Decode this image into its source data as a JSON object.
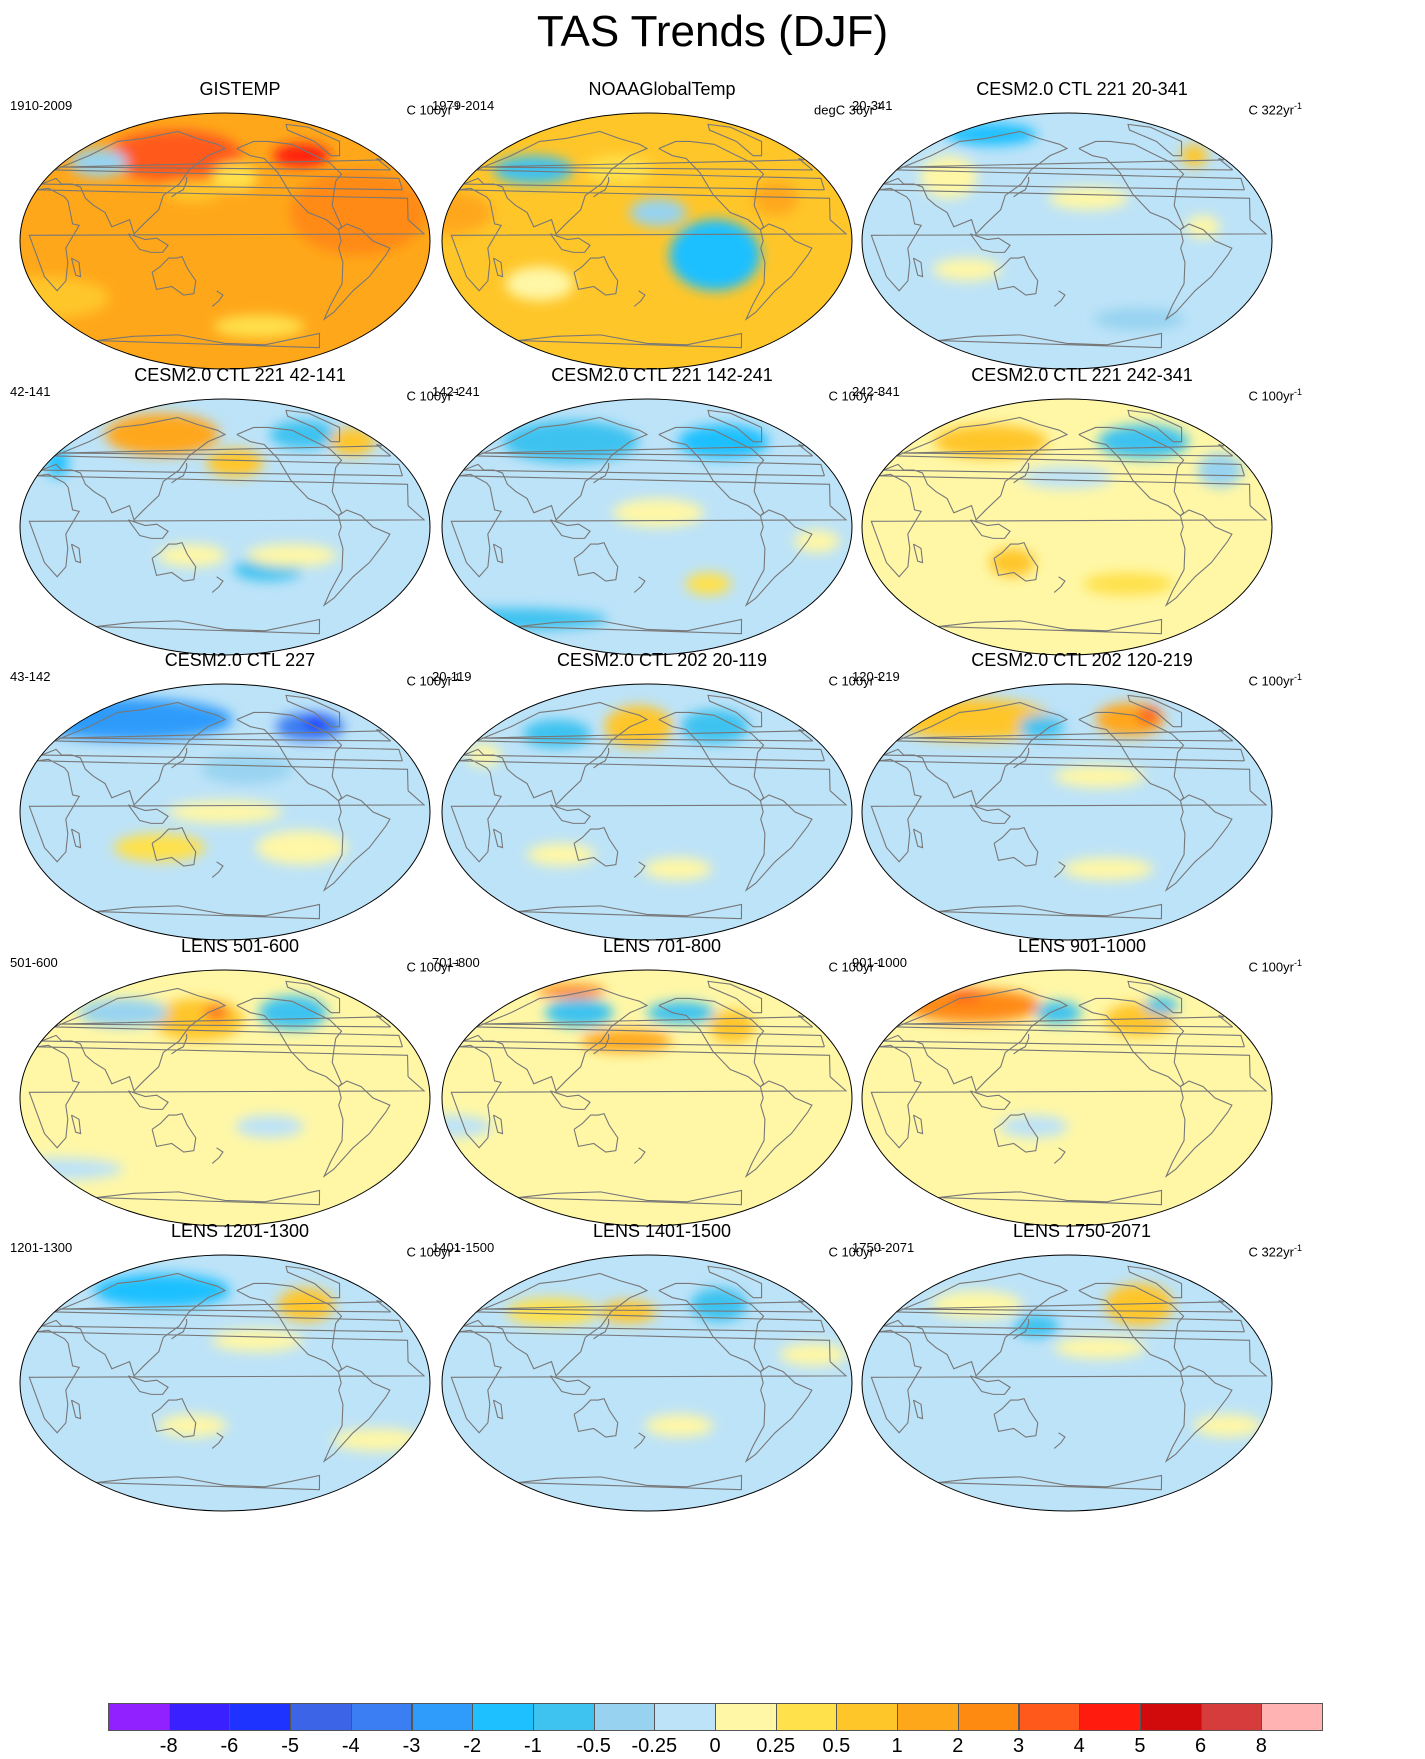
{
  "title": "TAS Trends (DJF)",
  "palette": {
    "-8": "#9121ff",
    "-6": "#3a1fff",
    "-5": "#1e33ff",
    "-4": "#3c64e6",
    "-3": "#3b7df2",
    "-2": "#2f9bfb",
    "-1": "#1ec0ff",
    "-0.5": "#3ec2f0",
    "-0.25": "#97d3f0",
    "0": "#bde3f8",
    "0.25": "#fff7a6",
    "0.5": "#ffe14b",
    "1": "#ffc629",
    "2": "#ffa71a",
    "3": "#ff8a12",
    "4": "#ff5a1c",
    "5": "#ff1b0d",
    "6": "#d10b0b",
    "8": "#d63c3c",
    "over": "#ffb3b3",
    "coast": "#777777",
    "missing": "#ffffff"
  },
  "colorbar": {
    "labels": [
      "-8",
      "-6",
      "-5",
      "-4",
      "-3",
      "-2",
      "-1",
      "-0.5",
      "-0.25",
      "0",
      "0.25",
      "0.5",
      "1",
      "2",
      "3",
      "4",
      "5",
      "6",
      "8"
    ],
    "colors": [
      "#9121ff",
      "#3a1fff",
      "#1e33ff",
      "#3c64e6",
      "#3b7df2",
      "#2f9bfb",
      "#1ec0ff",
      "#3ec2f0",
      "#97d3f0",
      "#bde3f8",
      "#fff7a6",
      "#ffe14b",
      "#ffc629",
      "#ffa71a",
      "#ff8a12",
      "#ff5a1c",
      "#ff1b0d",
      "#d10b0b",
      "#d63c3c",
      "#ffb3b3"
    ]
  },
  "panels": [
    {
      "title": "GISTEMP",
      "left": "1910-2009",
      "right": "C 100yr",
      "sup": "-1",
      "base": "2",
      "blobs": [
        {
          "lon": -60,
          "lat": 20,
          "rx": 60,
          "ry": 30,
          "v": "3"
        },
        {
          "lon": 120,
          "lat": 60,
          "rx": 60,
          "ry": 18,
          "v": "4"
        },
        {
          "lon": -90,
          "lat": 60,
          "rx": 25,
          "ry": 8,
          "v": "5"
        },
        {
          "lon": 40,
          "lat": 55,
          "rx": 25,
          "ry": 10,
          "v": "-0.25"
        },
        {
          "lon": -170,
          "lat": 45,
          "rx": 20,
          "ry": 10,
          "v": "0.5"
        },
        {
          "lon": 150,
          "lat": 35,
          "rx": 25,
          "ry": 8,
          "v": "1"
        },
        {
          "lon": 0,
          "lat": -40,
          "rx": 60,
          "ry": 15,
          "v": "1"
        },
        {
          "lon": -140,
          "lat": -60,
          "rx": 40,
          "ry": 8,
          "v": "0.5"
        }
      ]
    },
    {
      "title": "NOAAGlobalTemp",
      "left": "1979-2014",
      "right": "degC 36yr",
      "sup": "-1",
      "base": "1",
      "blobs": [
        {
          "lon": -120,
          "lat": -10,
          "rx": 40,
          "ry": 25,
          "v": "-1"
        },
        {
          "lon": -170,
          "lat": 20,
          "rx": 25,
          "ry": 10,
          "v": "-0.25"
        },
        {
          "lon": 150,
          "lat": 50,
          "rx": 30,
          "ry": 10,
          "v": "0.5"
        },
        {
          "lon": 60,
          "lat": 50,
          "rx": 35,
          "ry": 10,
          "v": "-0.5"
        },
        {
          "lon": 0,
          "lat": 20,
          "rx": 40,
          "ry": 15,
          "v": "2"
        },
        {
          "lon": -60,
          "lat": 30,
          "rx": 20,
          "ry": 12,
          "v": "2"
        },
        {
          "lon": 80,
          "lat": -30,
          "rx": 30,
          "ry": 12,
          "v": "0.25"
        }
      ]
    },
    {
      "title": "CESM2.0 CTL 221 20-341",
      "left": "20-341",
      "right": "C 322yr",
      "sup": "-1",
      "base": "0",
      "blobs": [
        {
          "lon": 60,
          "lat": 75,
          "rx": 40,
          "ry": 8,
          "v": "-1"
        },
        {
          "lon": 60,
          "lat": 45,
          "rx": 25,
          "ry": 15,
          "v": "0.25"
        },
        {
          "lon": -160,
          "lat": 30,
          "rx": 35,
          "ry": 8,
          "v": "0.25"
        },
        {
          "lon": -30,
          "lat": 60,
          "rx": 12,
          "ry": 8,
          "v": "1"
        },
        {
          "lon": -100,
          "lat": -55,
          "rx": 40,
          "ry": 8,
          "v": "-0.25"
        },
        {
          "lon": 90,
          "lat": -20,
          "rx": 30,
          "ry": 8,
          "v": "0.25"
        },
        {
          "lon": -60,
          "lat": 10,
          "rx": 15,
          "ry": 8,
          "v": "0.25"
        }
      ]
    },
    {
      "title": "CESM2.0 CTL 221 42-141",
      "left": "42-141",
      "right": "C 100yr",
      "sup": "-1",
      "base": "0",
      "blobs": [
        {
          "lon": 100,
          "lat": 65,
          "rx": 50,
          "ry": 15,
          "v": "2"
        },
        {
          "lon": -170,
          "lat": 45,
          "rx": 25,
          "ry": 10,
          "v": "1"
        },
        {
          "lon": -80,
          "lat": 65,
          "rx": 30,
          "ry": 10,
          "v": "-0.5"
        },
        {
          "lon": -30,
          "lat": 60,
          "rx": 20,
          "ry": 10,
          "v": "1"
        },
        {
          "lon": 10,
          "lat": 45,
          "rx": 10,
          "ry": 10,
          "v": "-1"
        },
        {
          "lon": -140,
          "lat": -30,
          "rx": 30,
          "ry": 8,
          "v": "-0.5"
        },
        {
          "lon": 150,
          "lat": -20,
          "rx": 30,
          "ry": 8,
          "v": "0.25"
        },
        {
          "lon": -120,
          "lat": -20,
          "rx": 40,
          "ry": 8,
          "v": "0.25"
        }
      ]
    },
    {
      "title": "CESM2.0 CTL 221 142-241",
      "left": "142-241",
      "right": "C 100yr",
      "sup": "-1",
      "base": "0",
      "blobs": [
        {
          "lon": 90,
          "lat": 60,
          "rx": 60,
          "ry": 15,
          "v": "-0.5"
        },
        {
          "lon": -90,
          "lat": 60,
          "rx": 40,
          "ry": 12,
          "v": "-1"
        },
        {
          "lon": -170,
          "lat": 10,
          "rx": 40,
          "ry": 10,
          "v": "0.25"
        },
        {
          "lon": -120,
          "lat": -40,
          "rx": 20,
          "ry": 8,
          "v": "0.5"
        },
        {
          "lon": -30,
          "lat": -10,
          "rx": 20,
          "ry": 8,
          "v": "0.25"
        },
        {
          "lon": 0,
          "lat": -65,
          "rx": 90,
          "ry": 8,
          "v": "-0.5"
        }
      ]
    },
    {
      "title": "CESM2.0 CTL 221 242-341",
      "left": "242-341",
      "right": "C 100yr",
      "sup": "-1",
      "base": "0.25",
      "blobs": [
        {
          "lon": 90,
          "lat": 60,
          "rx": 50,
          "ry": 12,
          "v": "1"
        },
        {
          "lon": -90,
          "lat": 60,
          "rx": 40,
          "ry": 12,
          "v": "-0.5"
        },
        {
          "lon": -30,
          "lat": 40,
          "rx": 20,
          "ry": 12,
          "v": "-0.25"
        },
        {
          "lon": 180,
          "lat": 35,
          "rx": 40,
          "ry": 8,
          "v": "0"
        },
        {
          "lon": 130,
          "lat": -25,
          "rx": 20,
          "ry": 10,
          "v": "1"
        },
        {
          "lon": -120,
          "lat": -40,
          "rx": 40,
          "ry": 8,
          "v": "0.5"
        }
      ]
    },
    {
      "title": "CESM2.0 CTL 227",
      "left": "43-142",
      "right": "C 100yr",
      "sup": "-1",
      "base": "0",
      "blobs": [
        {
          "lon": 60,
          "lat": 65,
          "rx": 90,
          "ry": 15,
          "v": "-2"
        },
        {
          "lon": -80,
          "lat": 60,
          "rx": 30,
          "ry": 10,
          "v": "-3"
        },
        {
          "lon": -70,
          "lat": 62,
          "rx": 10,
          "ry": 5,
          "v": "-5"
        },
        {
          "lon": -160,
          "lat": 30,
          "rx": 40,
          "ry": 10,
          "v": "-0.25"
        },
        {
          "lon": 180,
          "lat": 0,
          "rx": 50,
          "ry": 8,
          "v": "0.25"
        },
        {
          "lon": 120,
          "lat": -25,
          "rx": 40,
          "ry": 10,
          "v": "0.5"
        },
        {
          "lon": -110,
          "lat": -25,
          "rx": 40,
          "ry": 12,
          "v": "0.25"
        }
      ]
    },
    {
      "title": "CESM2.0 CTL 202 20-119",
      "left": "20-119",
      "right": "C 100yr",
      "sup": "-1",
      "base": "0",
      "blobs": [
        {
          "lon": 170,
          "lat": 60,
          "rx": 30,
          "ry": 15,
          "v": "1"
        },
        {
          "lon": -100,
          "lat": 60,
          "rx": 30,
          "ry": 12,
          "v": "-0.5"
        },
        {
          "lon": 80,
          "lat": 55,
          "rx": 30,
          "ry": 10,
          "v": "-0.5"
        },
        {
          "lon": 20,
          "lat": 40,
          "rx": 15,
          "ry": 8,
          "v": "0.25"
        },
        {
          "lon": -150,
          "lat": -40,
          "rx": 30,
          "ry": 8,
          "v": "0.25"
        },
        {
          "lon": 100,
          "lat": -30,
          "rx": 30,
          "ry": 8,
          "v": "0.25"
        }
      ]
    },
    {
      "title": "CESM2.0 CTL 202 120-219",
      "left": "120-219",
      "right": "C 100yr",
      "sup": "-1",
      "base": "0",
      "blobs": [
        {
          "lon": 60,
          "lat": 65,
          "rx": 70,
          "ry": 15,
          "v": "1"
        },
        {
          "lon": -100,
          "lat": 65,
          "rx": 30,
          "ry": 12,
          "v": "2"
        },
        {
          "lon": -70,
          "lat": 68,
          "rx": 10,
          "ry": 6,
          "v": "4"
        },
        {
          "lon": 150,
          "lat": 60,
          "rx": 20,
          "ry": 8,
          "v": "-0.5"
        },
        {
          "lon": -150,
          "lat": 25,
          "rx": 40,
          "ry": 8,
          "v": "0.25"
        },
        {
          "lon": -140,
          "lat": -40,
          "rx": 40,
          "ry": 8,
          "v": "0.25"
        }
      ]
    },
    {
      "title": "LENS 501-600",
      "left": "501-600",
      "right": "C 100yr",
      "sup": "-1",
      "base": "0.25",
      "blobs": [
        {
          "lon": 150,
          "lat": 55,
          "rx": 40,
          "ry": 15,
          "v": "1"
        },
        {
          "lon": 170,
          "lat": 60,
          "rx": 10,
          "ry": 5,
          "v": "4"
        },
        {
          "lon": -100,
          "lat": 60,
          "rx": 30,
          "ry": 12,
          "v": "-0.5"
        },
        {
          "lon": 60,
          "lat": 60,
          "rx": 40,
          "ry": 10,
          "v": "-0.25"
        },
        {
          "lon": 0,
          "lat": -50,
          "rx": 60,
          "ry": 8,
          "v": "0"
        },
        {
          "lon": -140,
          "lat": -20,
          "rx": 30,
          "ry": 8,
          "v": "0"
        }
      ]
    },
    {
      "title": "LENS 701-800",
      "left": "701-800",
      "right": "C 100yr",
      "sup": "-1",
      "base": "0.25",
      "blobs": [
        {
          "lon": 160,
          "lat": 40,
          "rx": 40,
          "ry": 8,
          "v": "2"
        },
        {
          "lon": 100,
          "lat": 60,
          "rx": 30,
          "ry": 10,
          "v": "-0.5"
        },
        {
          "lon": -90,
          "lat": 50,
          "rx": 20,
          "ry": 12,
          "v": "1"
        },
        {
          "lon": -140,
          "lat": 60,
          "rx": 30,
          "ry": 8,
          "v": "-0.5"
        },
        {
          "lon": 60,
          "lat": 75,
          "rx": 30,
          "ry": 5,
          "v": "3"
        },
        {
          "lon": 0,
          "lat": -20,
          "rx": 40,
          "ry": 8,
          "v": "0"
        }
      ]
    },
    {
      "title": "LENS 901-1000",
      "left": "901-1000",
      "right": "C 100yr",
      "sup": "-1",
      "base": "0.25",
      "blobs": [
        {
          "lon": 60,
          "lat": 65,
          "rx": 60,
          "ry": 12,
          "v": "3"
        },
        {
          "lon": 30,
          "lat": 72,
          "rx": 15,
          "ry": 4,
          "v": "4"
        },
        {
          "lon": -100,
          "lat": 55,
          "rx": 30,
          "ry": 12,
          "v": "1"
        },
        {
          "lon": 170,
          "lat": 60,
          "rx": 20,
          "ry": 8,
          "v": "-0.5"
        },
        {
          "lon": -60,
          "lat": 65,
          "rx": 15,
          "ry": 6,
          "v": "-0.5"
        },
        {
          "lon": 150,
          "lat": -20,
          "rx": 30,
          "ry": 8,
          "v": "0"
        }
      ]
    },
    {
      "title": "LENS 1201-1300",
      "left": "1201-1300",
      "right": "C 100yr",
      "sup": "-1",
      "base": "0",
      "blobs": [
        {
          "lon": 100,
          "lat": 65,
          "rx": 60,
          "ry": 12,
          "v": "-1"
        },
        {
          "lon": -90,
          "lat": 55,
          "rx": 25,
          "ry": 12,
          "v": "1"
        },
        {
          "lon": -150,
          "lat": 30,
          "rx": 40,
          "ry": 8,
          "v": "0.25"
        },
        {
          "lon": 150,
          "lat": -30,
          "rx": 30,
          "ry": 8,
          "v": "0.25"
        },
        {
          "lon": -30,
          "lat": -40,
          "rx": 40,
          "ry": 8,
          "v": "0.25"
        }
      ]
    },
    {
      "title": "LENS 1401-1500",
      "left": "1401-1500",
      "right": "C 100yr",
      "sup": "-1",
      "base": "0",
      "blobs": [
        {
          "lon": 80,
          "lat": 50,
          "rx": 40,
          "ry": 10,
          "v": "0.5"
        },
        {
          "lon": -100,
          "lat": 55,
          "rx": 25,
          "ry": 12,
          "v": "-0.5"
        },
        {
          "lon": 160,
          "lat": 50,
          "rx": 25,
          "ry": 8,
          "v": "1"
        },
        {
          "lon": -30,
          "lat": 20,
          "rx": 30,
          "ry": 8,
          "v": "0.25"
        },
        {
          "lon": -150,
          "lat": -30,
          "rx": 30,
          "ry": 8,
          "v": "0.25"
        }
      ]
    },
    {
      "title": "LENS 1750-2071",
      "left": "1750-2071",
      "right": "C 322yr",
      "sup": "-1",
      "base": "0",
      "blobs": [
        {
          "lon": -100,
          "lat": 55,
          "rx": 30,
          "ry": 15,
          "v": "1"
        },
        {
          "lon": 80,
          "lat": 55,
          "rx": 40,
          "ry": 10,
          "v": "0.25"
        },
        {
          "lon": 150,
          "lat": 40,
          "rx": 20,
          "ry": 8,
          "v": "-0.5"
        },
        {
          "lon": -150,
          "lat": 25,
          "rx": 40,
          "ry": 8,
          "v": "0.25"
        },
        {
          "lon": -30,
          "lat": -30,
          "rx": 30,
          "ry": 8,
          "v": "0.25"
        }
      ]
    }
  ]
}
